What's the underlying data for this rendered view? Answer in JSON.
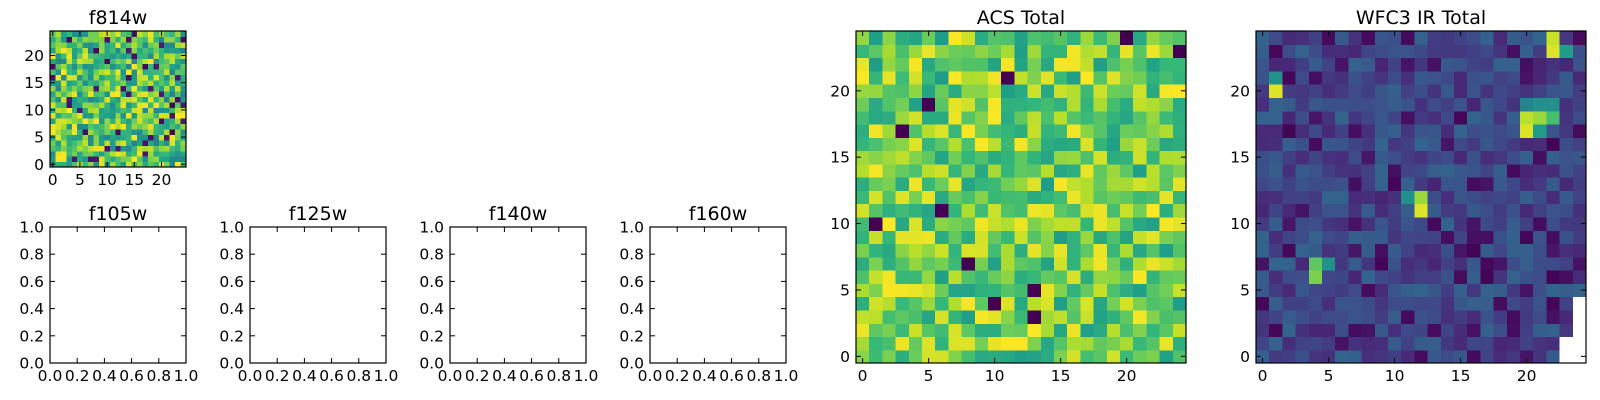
{
  "colors": {
    "colormap": "viridis",
    "background": "#ffffff",
    "axes": "#000000"
  },
  "chart_data": [
    {
      "id": "f814w",
      "type": "heatmap",
      "title": "f814w",
      "colormap": "viridis",
      "grid": false,
      "xlim": [
        -0.5,
        24.5
      ],
      "ylim": [
        -0.5,
        24.5
      ],
      "x_ticks": [
        "0",
        "5",
        "10",
        "15",
        "20"
      ],
      "y_ticks": [
        "0",
        "5",
        "10",
        "15",
        "20"
      ],
      "value_range": [
        0,
        1
      ],
      "rows": 25,
      "cols": 25,
      "z_note": "pixel values not labelled; randomly varying image, mostly high values with scattered low pixels"
    },
    {
      "id": "f105w",
      "type": "empty",
      "title": "f105w",
      "xlim": [
        0.0,
        1.0
      ],
      "ylim": [
        0.0,
        1.0
      ],
      "x_ticks": [
        "0.0",
        "0.2",
        "0.4",
        "0.6",
        "0.8",
        "1.0"
      ],
      "y_ticks": [
        "0.0",
        "0.2",
        "0.4",
        "0.6",
        "0.8",
        "1.0"
      ]
    },
    {
      "id": "f125w",
      "type": "empty",
      "title": "f125w",
      "xlim": [
        0.0,
        1.0
      ],
      "ylim": [
        0.0,
        1.0
      ],
      "x_ticks": [
        "0.0",
        "0.2",
        "0.4",
        "0.6",
        "0.8",
        "1.0"
      ],
      "y_ticks": [
        "0.0",
        "0.2",
        "0.4",
        "0.6",
        "0.8",
        "1.0"
      ]
    },
    {
      "id": "f140w",
      "type": "empty",
      "title": "f140w",
      "xlim": [
        0.0,
        1.0
      ],
      "ylim": [
        0.0,
        1.0
      ],
      "x_ticks": [
        "0.0",
        "0.2",
        "0.4",
        "0.6",
        "0.8",
        "1.0"
      ],
      "y_ticks": [
        "0.0",
        "0.2",
        "0.4",
        "0.6",
        "0.8",
        "1.0"
      ]
    },
    {
      "id": "f160w",
      "type": "empty",
      "title": "f160w",
      "xlim": [
        0.0,
        1.0
      ],
      "ylim": [
        0.0,
        1.0
      ],
      "x_ticks": [
        "0.0",
        "0.2",
        "0.4",
        "0.6",
        "0.8",
        "1.0"
      ],
      "y_ticks": [
        "0.0",
        "0.2",
        "0.4",
        "0.6",
        "0.8",
        "1.0"
      ]
    },
    {
      "id": "acs",
      "type": "heatmap",
      "title": "ACS Total",
      "colormap": "viridis",
      "grid": false,
      "xlim": [
        -0.5,
        24.5
      ],
      "ylim": [
        -0.5,
        24.5
      ],
      "x_ticks": [
        "0",
        "5",
        "10",
        "15",
        "20"
      ],
      "y_ticks": [
        "0",
        "5",
        "10",
        "15",
        "20"
      ],
      "value_range": [
        0,
        1
      ],
      "rows": 25,
      "cols": 25,
      "z_note": "pixel values not labelled; mostly green-yellow, a few dark outliers",
      "dark_pixels": [
        [
          24,
          23
        ],
        [
          20,
          24
        ],
        [
          13,
          5
        ],
        [
          13,
          3
        ],
        [
          11,
          21
        ],
        [
          10,
          4
        ],
        [
          8,
          7
        ],
        [
          6,
          11
        ],
        [
          5,
          19
        ],
        [
          3,
          17
        ],
        [
          1,
          10
        ]
      ]
    },
    {
      "id": "wfc3",
      "type": "heatmap",
      "title": "WFC3 IR Total",
      "colormap": "viridis",
      "grid": false,
      "xlim": [
        -0.5,
        24.5
      ],
      "ylim": [
        -0.5,
        24.5
      ],
      "x_ticks": [
        "0",
        "5",
        "10",
        "15",
        "20"
      ],
      "y_ticks": [
        "0",
        "5",
        "10",
        "15",
        "20"
      ],
      "value_range": [
        0,
        1
      ],
      "rows": 25,
      "cols": 25,
      "z_note": "pixel values not labelled; mostly low (dark blue) with a few bright sources",
      "bright_pixels": [
        {
          "x": 22,
          "y": 23,
          "v": 0.95
        },
        {
          "x": 22,
          "y": 24,
          "v": 0.92
        },
        {
          "x": 23,
          "y": 23,
          "v": 0.55
        },
        {
          "x": 1,
          "y": 20,
          "v": 0.95
        },
        {
          "x": 1,
          "y": 21,
          "v": 0.5
        },
        {
          "x": 20,
          "y": 17,
          "v": 0.95
        },
        {
          "x": 20,
          "y": 18,
          "v": 0.9
        },
        {
          "x": 21,
          "y": 18,
          "v": 0.85
        },
        {
          "x": 21,
          "y": 17,
          "v": 0.55
        },
        {
          "x": 21,
          "y": 19,
          "v": 0.5
        },
        {
          "x": 22,
          "y": 18,
          "v": 0.7
        },
        {
          "x": 22,
          "y": 19,
          "v": 0.5
        },
        {
          "x": 20,
          "y": 19,
          "v": 0.45
        },
        {
          "x": 12,
          "y": 11,
          "v": 0.95
        },
        {
          "x": 12,
          "y": 12,
          "v": 0.85
        },
        {
          "x": 11,
          "y": 12,
          "v": 0.5
        },
        {
          "x": 4,
          "y": 6,
          "v": 0.8
        },
        {
          "x": 4,
          "y": 7,
          "v": 0.75
        },
        {
          "x": 5,
          "y": 7,
          "v": 0.5
        }
      ],
      "missing_pixels": [
        [
          24,
          0
        ],
        [
          24,
          1
        ],
        [
          24,
          2
        ],
        [
          24,
          3
        ],
        [
          24,
          4
        ],
        [
          23,
          0
        ],
        [
          23,
          1
        ]
      ]
    }
  ]
}
